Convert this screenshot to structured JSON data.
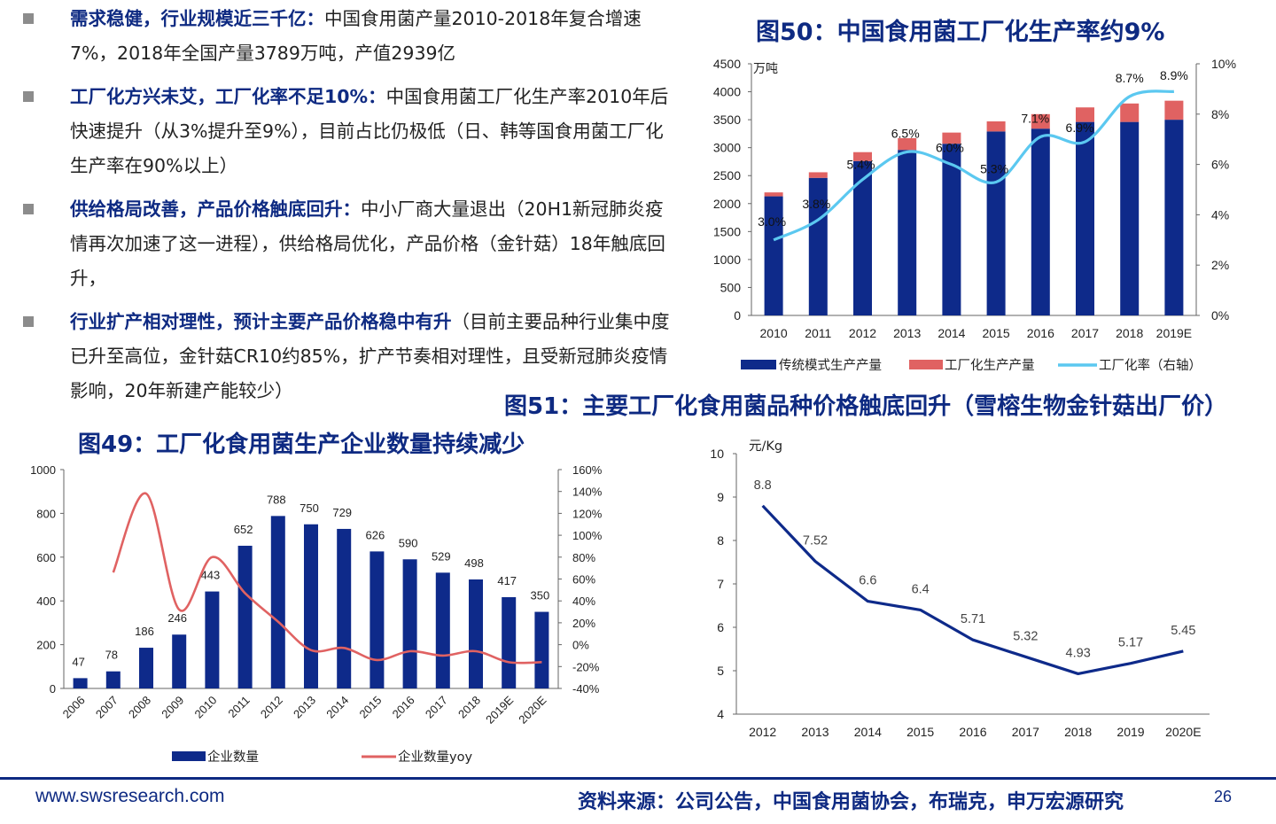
{
  "bullets": [
    {
      "head": "需求稳健，行业规模近三千亿：",
      "body": "中国食用菌产量2010-2018年复合增速7%，2018年全国产量3789万吨，产值2939亿"
    },
    {
      "head": "工厂化方兴未艾，工厂化率不足10%：",
      "body": "中国食用菌工厂化生产率2010年后快速提升（从3%提升至9%），目前占比仍极低（日、韩等国食用菌工厂化生产率在90%以上）"
    },
    {
      "head": "供给格局改善，产品价格触底回升：",
      "body": "中小厂商大量退出（20H1新冠肺炎疫情再次加速了这一进程），供给格局优化，产品价格（金针菇）18年触底回升，"
    },
    {
      "head": "行业扩产相对理性，预计主要产品价格稳中有升",
      "body": "（目前主要品种行业集中度已升至高位，金针菇CR10约85%，扩产节奏相对理性，且受新冠肺炎疫情影响，20年新建产能较少）"
    }
  ],
  "fig50": {
    "title": "图50：中国食用菌工厂化生产率约9%",
    "chart_data": {
      "type": "bar",
      "categories": [
        "2010",
        "2011",
        "2012",
        "2013",
        "2014",
        "2015",
        "2016",
        "2017",
        "2018",
        "2019E"
      ],
      "series": [
        {
          "name": "传统模式生产产量",
          "values": [
            2130,
            2460,
            2760,
            2960,
            3070,
            3290,
            3340,
            3460,
            3460,
            3500
          ]
        },
        {
          "name": "工厂化生产产量",
          "values": [
            70,
            100,
            160,
            210,
            200,
            180,
            260,
            260,
            330,
            340
          ]
        },
        {
          "name": "工厂化率（右轴）",
          "values": [
            3.0,
            3.8,
            5.4,
            6.5,
            6.0,
            5.3,
            7.1,
            6.9,
            8.7,
            8.9
          ],
          "axis": "right"
        }
      ],
      "ratio_labels": [
        "3.0%",
        "3.8%",
        "5.4%",
        "6.5%",
        "6.0%",
        "5.3%",
        "7.1%",
        "6.9%",
        "8.7%",
        "8.9%"
      ],
      "unit_left": "万吨",
      "ylim": [
        0,
        4500
      ],
      "y_ticks": [
        "0",
        "500",
        "1000",
        "1500",
        "2000",
        "2500",
        "3000",
        "3500",
        "4000",
        "4500"
      ],
      "y2lim": [
        0,
        10
      ],
      "y2_ticks": [
        "0%",
        "2%",
        "4%",
        "6%",
        "8%",
        "10%"
      ],
      "colors": {
        "traditional": "#0e2a8a",
        "factory": "#e06262",
        "ratio": "#5bc8f0"
      },
      "legend_position": "bottom"
    }
  },
  "fig49": {
    "title": "图49：工厂化食用菌生产企业数量持续减少",
    "chart_data": {
      "type": "bar",
      "categories": [
        "2006",
        "2007",
        "2008",
        "2009",
        "2010",
        "2011",
        "2012",
        "2013",
        "2014",
        "2015",
        "2016",
        "2017",
        "2018",
        "2019E",
        "2020E"
      ],
      "series": [
        {
          "name": "企业数量",
          "values": [
            47,
            78,
            186,
            246,
            443,
            652,
            788,
            750,
            729,
            626,
            590,
            529,
            498,
            417,
            350
          ]
        },
        {
          "name": "企业数量yoy",
          "values": [
            null,
            66,
            138,
            32,
            80,
            47,
            21,
            -5,
            -3,
            -14,
            -6,
            -10,
            -6,
            -16,
            -16
          ],
          "axis": "right"
        }
      ],
      "ylim": [
        0,
        1000
      ],
      "y_ticks": [
        "0",
        "200",
        "400",
        "600",
        "800",
        "1000"
      ],
      "y2lim": [
        -40,
        160
      ],
      "y2_ticks": [
        "-40%",
        "-20%",
        "0%",
        "20%",
        "40%",
        "60%",
        "80%",
        "100%",
        "120%",
        "140%",
        "160%"
      ],
      "colors": {
        "bar": "#0e2a8a",
        "line": "#e06262"
      },
      "legend_position": "bottom"
    }
  },
  "fig51": {
    "title": "图51：主要工厂化食用菌品种价格触底回升（雪榕生物金针菇出厂价）",
    "chart_data": {
      "type": "line",
      "categories": [
        "2012",
        "2013",
        "2014",
        "2015",
        "2016",
        "2017",
        "2018",
        "2019",
        "2020E"
      ],
      "series": [
        {
          "values": [
            8.8,
            7.52,
            6.6,
            6.4,
            5.71,
            5.32,
            4.93,
            5.17,
            5.45
          ]
        }
      ],
      "value_labels": [
        "8.8",
        "7.52",
        "6.6",
        "6.4",
        "5.71",
        "5.32",
        "4.93",
        "5.17",
        "5.45"
      ],
      "unit": "元/Kg",
      "ylim": [
        4,
        10
      ],
      "y_ticks": [
        "4",
        "5",
        "6",
        "7",
        "8",
        "9",
        "10"
      ],
      "colors": {
        "line": "#0e2a8a"
      }
    }
  },
  "footer": {
    "url": "www.swsresearch.com",
    "source": "资料来源：公司公告，中国食用菌协会，布瑞克，申万宏源研究",
    "page": "26"
  }
}
